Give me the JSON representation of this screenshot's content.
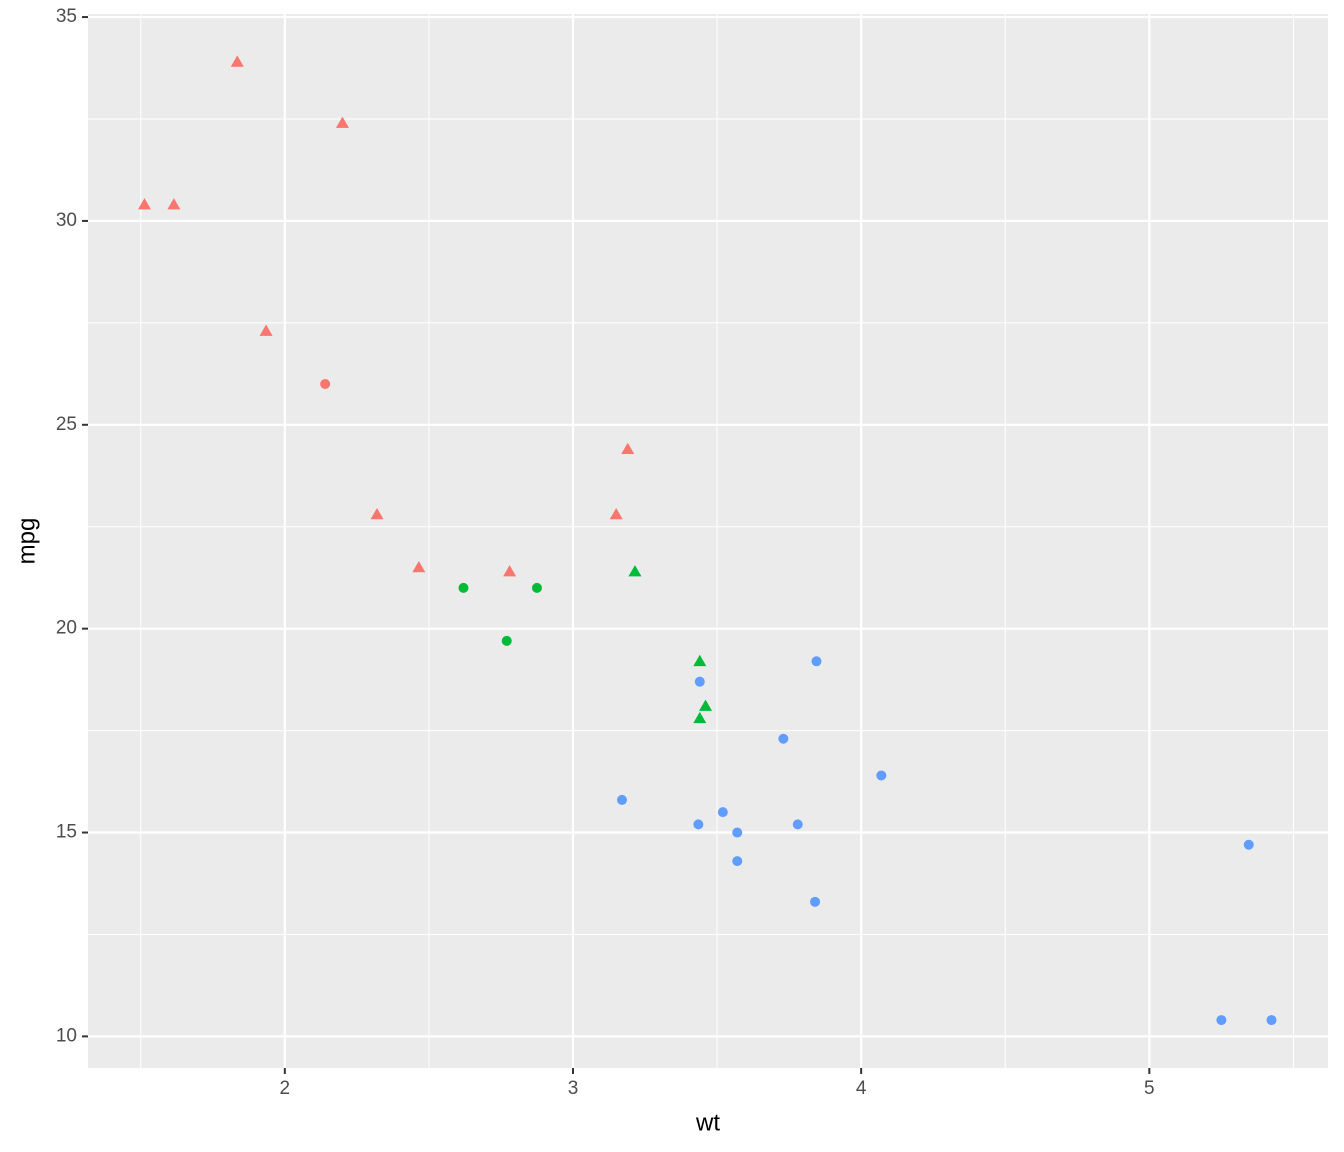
{
  "chart_data": {
    "type": "scatter",
    "x_label": "wt",
    "y_label": "mpg",
    "xlim": [
      1.317,
      5.62
    ],
    "ylim": [
      9.225,
      35.075
    ],
    "xticks": [
      2,
      3,
      4,
      5
    ],
    "yticks": [
      10,
      15,
      20,
      25,
      30,
      35
    ],
    "xminorticks": [
      1.5,
      2.5,
      3.5,
      4.5,
      5.5
    ],
    "yminorticks": [
      12.5,
      17.5,
      22.5,
      27.5,
      32.5
    ],
    "grid": true,
    "series": [
      {
        "color": "#f8766d",
        "shape": "triangle",
        "x": [
          2.32,
          3.19,
          3.15,
          2.2,
          1.615,
          1.835,
          2.465,
          1.935,
          1.513,
          2.78
        ],
        "values": [
          22.8,
          24.4,
          22.8,
          32.4,
          30.4,
          33.9,
          21.5,
          27.3,
          30.4,
          21.4
        ]
      },
      {
        "color": "#f8766d",
        "shape": "circle",
        "x": [
          2.14
        ],
        "values": [
          26.0
        ]
      },
      {
        "color": "#00ba38",
        "shape": "triangle",
        "x": [
          3.215,
          3.46,
          3.44,
          3.44
        ],
        "values": [
          21.4,
          18.1,
          19.2,
          17.8
        ]
      },
      {
        "color": "#00ba38",
        "shape": "circle",
        "x": [
          2.62,
          2.875,
          2.77
        ],
        "values": [
          21.0,
          21.0,
          19.7
        ]
      },
      {
        "color": "#619cff",
        "shape": "circle",
        "x": [
          3.44,
          3.57,
          4.07,
          3.73,
          3.78,
          5.25,
          5.424,
          5.345,
          3.52,
          3.435,
          3.84,
          3.845,
          3.17,
          3.57
        ],
        "values": [
          18.7,
          14.3,
          16.4,
          17.3,
          15.2,
          10.4,
          10.4,
          14.7,
          15.5,
          15.2,
          13.3,
          19.2,
          15.8,
          15.0
        ]
      }
    ]
  }
}
